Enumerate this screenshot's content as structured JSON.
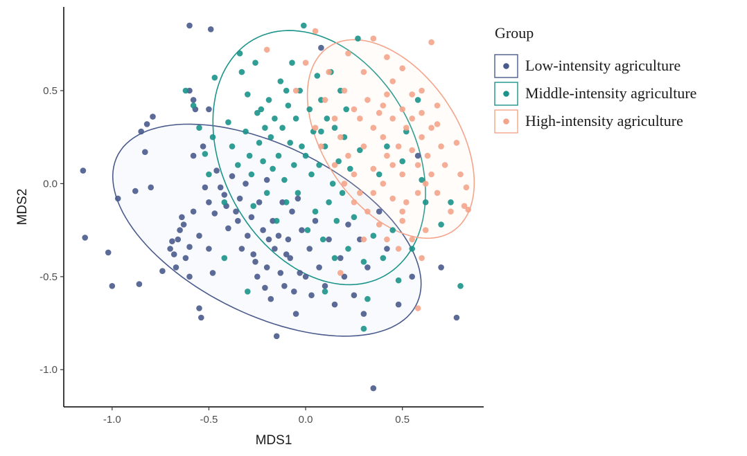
{
  "chart_data": {
    "type": "scatter",
    "title": "",
    "xlabel": "MDS1",
    "ylabel": "MDS2",
    "xlim": [
      -1.25,
      0.92
    ],
    "ylim": [
      -1.2,
      0.95
    ],
    "xticks": [
      -1.0,
      -0.5,
      0.0,
      0.5
    ],
    "xtick_labels": [
      "-1.0",
      "-0.5",
      "0.0",
      "0.5"
    ],
    "yticks": [
      0.5,
      0.0,
      -0.5,
      -1.0
    ],
    "ytick_labels": [
      "0.5",
      "0.0",
      "-0.5",
      "-1.0"
    ],
    "grid": false,
    "legend": {
      "title": "Group",
      "position": "right"
    },
    "series": [
      {
        "name": "Low-intensity agriculture",
        "color": "#4a5a8c",
        "ellipse": {
          "cx": -0.2,
          "cy": -0.25,
          "rx": 0.87,
          "ry": 0.45,
          "angle_deg": -28
        },
        "points": [
          [
            -0.6,
            0.85
          ],
          [
            -0.49,
            0.83
          ],
          [
            -0.6,
            0.5
          ],
          [
            -0.58,
            0.45
          ],
          [
            -0.57,
            0.4
          ],
          [
            -0.5,
            0.4
          ],
          [
            -1.15,
            0.07
          ],
          [
            -1.14,
            -0.29
          ],
          [
            -1.02,
            -0.37
          ],
          [
            -1.0,
            -0.55
          ],
          [
            -0.97,
            -0.08
          ],
          [
            -0.88,
            -0.04
          ],
          [
            -0.86,
            -0.54
          ],
          [
            -0.85,
            0.28
          ],
          [
            -0.83,
            0.17
          ],
          [
            -0.82,
            0.32
          ],
          [
            -0.79,
            0.36
          ],
          [
            -0.8,
            -0.02
          ],
          [
            -0.74,
            -0.47
          ],
          [
            -0.7,
            -0.35
          ],
          [
            -0.69,
            -0.31
          ],
          [
            -0.68,
            -0.38
          ],
          [
            -0.67,
            -0.45
          ],
          [
            -0.66,
            -0.3
          ],
          [
            -0.65,
            -0.25
          ],
          [
            -0.64,
            -0.18
          ],
          [
            -0.63,
            -0.22
          ],
          [
            -0.62,
            -0.4
          ],
          [
            -0.6,
            -0.34
          ],
          [
            -0.6,
            -0.5
          ],
          [
            -0.58,
            -0.15
          ],
          [
            -0.55,
            -0.28
          ],
          [
            -0.55,
            -0.67
          ],
          [
            -0.54,
            -0.72
          ],
          [
            -0.53,
            0.2
          ],
          [
            -0.52,
            -0.02
          ],
          [
            -0.5,
            -0.1
          ],
          [
            -0.5,
            -0.35
          ],
          [
            -0.48,
            -0.48
          ],
          [
            -0.47,
            -0.16
          ],
          [
            -0.46,
            0.07
          ],
          [
            -0.44,
            -0.02
          ],
          [
            -0.42,
            -0.06
          ],
          [
            -0.41,
            -0.12
          ],
          [
            -0.4,
            -0.24
          ],
          [
            -0.38,
            0.04
          ],
          [
            -0.36,
            -0.15
          ],
          [
            -0.35,
            -0.2
          ],
          [
            -0.34,
            -0.08
          ],
          [
            -0.33,
            -0.35
          ],
          [
            -0.31,
            0.0
          ],
          [
            -0.3,
            -0.28
          ],
          [
            -0.28,
            -0.18
          ],
          [
            -0.27,
            -0.38
          ],
          [
            -0.26,
            -0.42
          ],
          [
            -0.25,
            -0.5
          ],
          [
            -0.24,
            -0.1
          ],
          [
            -0.22,
            -0.25
          ],
          [
            -0.21,
            -0.56
          ],
          [
            -0.2,
            -0.45
          ],
          [
            -0.19,
            -0.3
          ],
          [
            -0.18,
            -0.62
          ],
          [
            -0.17,
            -0.2
          ],
          [
            -0.16,
            -0.35
          ],
          [
            -0.15,
            -0.82
          ],
          [
            -0.14,
            -0.28
          ],
          [
            -0.13,
            -0.48
          ],
          [
            -0.12,
            -0.1
          ],
          [
            -0.11,
            -0.55
          ],
          [
            -0.1,
            -0.38
          ],
          [
            -0.09,
            -0.3
          ],
          [
            -0.08,
            -0.4
          ],
          [
            -0.07,
            -0.15
          ],
          [
            -0.06,
            -0.58
          ],
          [
            -0.05,
            -0.7
          ],
          [
            -0.04,
            -0.08
          ],
          [
            -0.03,
            -0.48
          ],
          [
            -0.02,
            -0.25
          ],
          [
            0.0,
            -0.5
          ],
          [
            0.02,
            -0.35
          ],
          [
            0.03,
            -0.6
          ],
          [
            0.05,
            -0.2
          ],
          [
            0.07,
            -0.45
          ],
          [
            0.1,
            -0.55
          ],
          [
            0.12,
            -0.3
          ],
          [
            0.15,
            -0.65
          ],
          [
            0.18,
            -0.4
          ],
          [
            0.2,
            -0.5
          ],
          [
            0.22,
            -0.22
          ],
          [
            0.25,
            -0.6
          ],
          [
            0.28,
            -0.3
          ],
          [
            0.3,
            -0.7
          ],
          [
            0.32,
            -0.45
          ],
          [
            0.35,
            -1.1
          ],
          [
            0.38,
            -0.15
          ],
          [
            0.42,
            -0.35
          ],
          [
            0.48,
            -0.65
          ],
          [
            0.55,
            -0.5
          ],
          [
            0.58,
            0.15
          ],
          [
            0.7,
            -0.45
          ],
          [
            0.78,
            -0.72
          ],
          [
            0.08,
            0.73
          ],
          [
            -0.2,
            0.02
          ],
          [
            -0.58,
            0.15
          ]
        ]
      },
      {
        "name": "Middle-intensity agriculture",
        "color": "#1a948a",
        "ellipse": {
          "cx": 0.07,
          "cy": 0.14,
          "rx": 0.72,
          "ry": 0.5,
          "angle_deg": -64
        },
        "points": [
          [
            -0.62,
            0.5
          ],
          [
            -0.58,
            0.42
          ],
          [
            -0.55,
            0.3
          ],
          [
            -0.52,
            0.16
          ],
          [
            -0.5,
            0.05
          ],
          [
            -0.48,
            0.25
          ],
          [
            -0.47,
            0.57
          ],
          [
            -0.42,
            -0.1
          ],
          [
            -0.4,
            0.33
          ],
          [
            -0.38,
            0.2
          ],
          [
            -0.35,
            0.1
          ],
          [
            -0.34,
            0.7
          ],
          [
            -0.33,
            0.6
          ],
          [
            -0.31,
            0.28
          ],
          [
            -0.3,
            0.48
          ],
          [
            -0.29,
            0.15
          ],
          [
            -0.28,
            0.05
          ],
          [
            -0.27,
            -0.12
          ],
          [
            -0.26,
            0.65
          ],
          [
            -0.25,
            0.38
          ],
          [
            -0.24,
            0.22
          ],
          [
            -0.23,
            0.4
          ],
          [
            -0.22,
            0.12
          ],
          [
            -0.21,
            0.3
          ],
          [
            -0.2,
            -0.05
          ],
          [
            -0.19,
            0.45
          ],
          [
            -0.18,
            0.25
          ],
          [
            -0.17,
            0.08
          ],
          [
            -0.16,
            0.35
          ],
          [
            -0.15,
            -0.2
          ],
          [
            -0.14,
            0.15
          ],
          [
            -0.13,
            0.55
          ],
          [
            -0.12,
            0.3
          ],
          [
            -0.11,
            0.02
          ],
          [
            -0.1,
            -0.1
          ],
          [
            -0.09,
            0.42
          ],
          [
            -0.08,
            0.22
          ],
          [
            -0.07,
            0.65
          ],
          [
            -0.06,
            0.1
          ],
          [
            -0.05,
            0.35
          ],
          [
            -0.04,
            -0.05
          ],
          [
            -0.03,
            0.5
          ],
          [
            -0.02,
            0.2
          ],
          [
            -0.01,
            0.85
          ],
          [
            0.0,
            0.15
          ],
          [
            0.01,
            -0.25
          ],
          [
            0.02,
            0.4
          ],
          [
            0.03,
            0.05
          ],
          [
            0.04,
            0.28
          ],
          [
            0.05,
            -0.15
          ],
          [
            0.06,
            0.58
          ],
          [
            0.07,
            0.1
          ],
          [
            0.08,
            0.45
          ],
          [
            0.09,
            -0.3
          ],
          [
            0.1,
            0.2
          ],
          [
            0.11,
            0.35
          ],
          [
            0.12,
            -0.1
          ],
          [
            0.13,
            0.6
          ],
          [
            0.14,
            0.0
          ],
          [
            0.15,
            0.3
          ],
          [
            0.16,
            -0.2
          ],
          [
            0.17,
            0.12
          ],
          [
            0.18,
            0.5
          ],
          [
            0.19,
            -0.05
          ],
          [
            0.2,
            0.25
          ],
          [
            0.21,
            0.4
          ],
          [
            0.22,
            -0.35
          ],
          [
            0.23,
            0.08
          ],
          [
            0.25,
            -0.18
          ],
          [
            0.27,
            0.78
          ],
          [
            0.28,
            0.18
          ],
          [
            0.3,
            -0.42
          ],
          [
            0.32,
            -0.62
          ],
          [
            0.35,
            -0.28
          ],
          [
            0.38,
            0.05
          ],
          [
            0.4,
            -0.4
          ],
          [
            0.42,
            0.2
          ],
          [
            0.45,
            -0.25
          ],
          [
            0.48,
            -0.52
          ],
          [
            0.5,
            0.12
          ],
          [
            0.52,
            0.28
          ],
          [
            0.55,
            -0.35
          ],
          [
            0.58,
            0.45
          ],
          [
            0.6,
            0.02
          ],
          [
            0.62,
            -0.1
          ],
          [
            0.7,
            -0.22
          ],
          [
            0.75,
            -0.1
          ],
          [
            0.8,
            -0.55
          ],
          [
            0.3,
            -0.78
          ],
          [
            -0.3,
            -0.58
          ],
          [
            -0.42,
            -0.4
          ],
          [
            0.1,
            -0.58
          ],
          [
            0.15,
            -0.4
          ],
          [
            -0.1,
            0.5
          ],
          [
            0.08,
            0.28
          ]
        ]
      },
      {
        "name": "High-intensity agriculture",
        "color": "#f4a48a",
        "ellipse": {
          "cx": 0.44,
          "cy": 0.24,
          "rx": 0.59,
          "ry": 0.35,
          "angle_deg": -58
        },
        "points": [
          [
            0.05,
            0.82
          ],
          [
            0.22,
            0.7
          ],
          [
            0.3,
            0.6
          ],
          [
            0.35,
            0.78
          ],
          [
            0.42,
            0.68
          ],
          [
            0.45,
            0.55
          ],
          [
            0.5,
            0.62
          ],
          [
            0.55,
            0.48
          ],
          [
            0.6,
            0.5
          ],
          [
            0.65,
            0.76
          ],
          [
            0.68,
            0.42
          ],
          [
            0.2,
            0.5
          ],
          [
            0.25,
            0.4
          ],
          [
            0.28,
            0.35
          ],
          [
            0.32,
            0.45
          ],
          [
            0.35,
            0.3
          ],
          [
            0.38,
            0.38
          ],
          [
            0.4,
            0.25
          ],
          [
            0.42,
            0.15
          ],
          [
            0.45,
            0.35
          ],
          [
            0.48,
            0.2
          ],
          [
            0.5,
            0.05
          ],
          [
            0.52,
            0.3
          ],
          [
            0.55,
            0.18
          ],
          [
            0.58,
            0.1
          ],
          [
            0.6,
            0.25
          ],
          [
            0.62,
            0.0
          ],
          [
            0.63,
            0.15
          ],
          [
            0.65,
            0.3
          ],
          [
            0.68,
            -0.05
          ],
          [
            0.7,
            0.2
          ],
          [
            0.72,
            0.1
          ],
          [
            0.75,
            -0.15
          ],
          [
            0.78,
            0.22
          ],
          [
            0.8,
            0.05
          ],
          [
            0.82,
            -0.12
          ],
          [
            0.83,
            -0.02
          ],
          [
            0.84,
            -0.14
          ],
          [
            0.15,
            0.35
          ],
          [
            0.18,
            0.25
          ],
          [
            0.22,
            0.15
          ],
          [
            0.25,
            0.05
          ],
          [
            0.28,
            -0.05
          ],
          [
            0.3,
            0.2
          ],
          [
            0.32,
            -0.15
          ],
          [
            0.35,
            0.08
          ],
          [
            0.38,
            -0.22
          ],
          [
            0.4,
            0.0
          ],
          [
            0.42,
            -0.3
          ],
          [
            0.45,
            -0.08
          ],
          [
            0.48,
            -0.35
          ],
          [
            0.5,
            -0.2
          ],
          [
            0.52,
            -0.1
          ],
          [
            0.55,
            -0.3
          ],
          [
            0.58,
            -0.05
          ],
          [
            0.6,
            -0.4
          ],
          [
            0.62,
            -0.25
          ],
          [
            0.1,
            0.45
          ],
          [
            0.12,
            0.6
          ],
          [
            0.08,
            0.2
          ],
          [
            0.05,
            0.3
          ],
          [
            -0.05,
            0.5
          ],
          [
            0.0,
            0.65
          ],
          [
            0.15,
            0.1
          ],
          [
            0.2,
            0.0
          ],
          [
            0.25,
            -0.1
          ],
          [
            0.3,
            -0.3
          ],
          [
            0.35,
            -0.05
          ],
          [
            0.4,
            0.42
          ],
          [
            0.45,
            0.1
          ],
          [
            0.5,
            0.4
          ],
          [
            0.55,
            0.35
          ],
          [
            0.58,
            -0.67
          ],
          [
            0.6,
            0.38
          ],
          [
            -0.2,
            0.72
          ],
          [
            0.18,
            -0.48
          ],
          [
            0.65,
            0.05
          ],
          [
            0.68,
            0.32
          ],
          [
            0.5,
            -0.15
          ],
          [
            0.42,
            0.48
          ]
        ]
      }
    ]
  }
}
